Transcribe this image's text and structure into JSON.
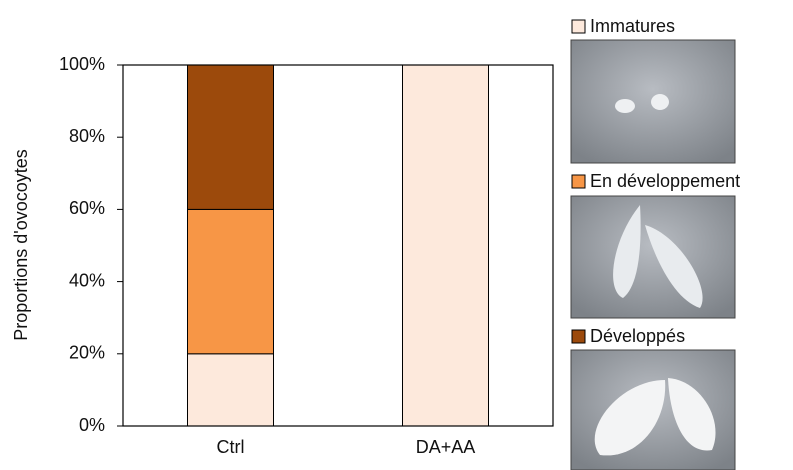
{
  "chart_data": {
    "type": "stacked-bar",
    "y_label": "Proportions d'ovocoytes",
    "categories": [
      "Ctrl",
      "DA+AA"
    ],
    "series": [
      {
        "name": "Immatures",
        "color": "#fde9dc",
        "values": [
          20,
          100
        ]
      },
      {
        "name": "En développement",
        "color": "#f79646",
        "values": [
          40,
          0
        ]
      },
      {
        "name": "Développés",
        "color": "#9c4a0c",
        "values": [
          40,
          0
        ]
      }
    ],
    "ylim": [
      0,
      100
    ],
    "yticks": [
      {
        "value": 0,
        "label": "0%"
      },
      {
        "value": 20,
        "label": "20%"
      },
      {
        "value": 40,
        "label": "40%"
      },
      {
        "value": 60,
        "label": "60%"
      },
      {
        "value": 80,
        "label": "80%"
      },
      {
        "value": 100,
        "label": "100%"
      }
    ],
    "grid": false
  }
}
